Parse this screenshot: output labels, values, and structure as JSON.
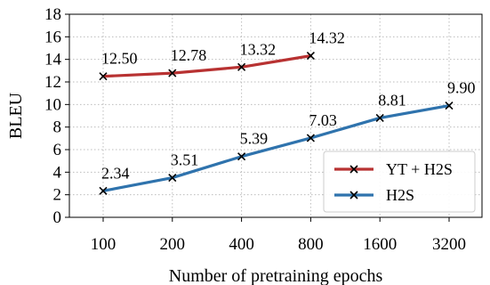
{
  "chart_data": {
    "type": "line",
    "categories": [
      "100",
      "200",
      "400",
      "800",
      "1600",
      "3200"
    ],
    "xlabel": "Number of pretraining epochs",
    "ylabel": "BLEU",
    "ylim": [
      0,
      18
    ],
    "yticks": [
      0,
      2,
      4,
      6,
      8,
      10,
      12,
      14,
      16,
      18
    ],
    "grid": true,
    "legend_position": "lower-right",
    "series": [
      {
        "name": "YT + H2S",
        "color": "#b83232",
        "values": [
          12.5,
          12.78,
          13.32,
          14.32,
          null,
          null
        ],
        "labels": [
          "12.50",
          "12.78",
          "13.32",
          "14.32",
          "",
          ""
        ]
      },
      {
        "name": "H2S",
        "color": "#2f73ad",
        "values": [
          2.34,
          3.51,
          5.39,
          7.03,
          8.81,
          9.9
        ],
        "labels": [
          "2.34",
          "3.51",
          "5.39",
          "7.03",
          "8.81",
          "9.90"
        ]
      }
    ]
  }
}
